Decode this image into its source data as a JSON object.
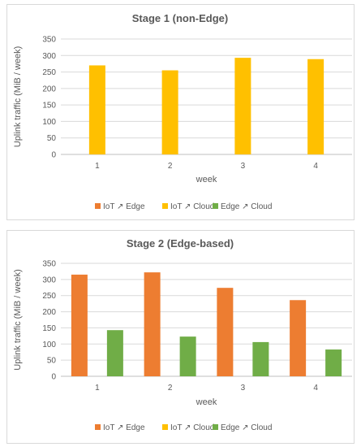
{
  "colors": {
    "iot_edge": "#ED7D31",
    "iot_cloud": "#FFC000",
    "edge_cloud": "#70AD47"
  },
  "chart_data": [
    {
      "type": "bar",
      "title": "Stage 1 (non-Edge)",
      "xlabel": "week",
      "ylabel": "Uplink traffic (MiB / week)",
      "ylim": [
        0,
        350
      ],
      "yticks": [
        0,
        50,
        100,
        150,
        200,
        250,
        300,
        350
      ],
      "categories": [
        "1",
        "2",
        "3",
        "4"
      ],
      "grid": true,
      "legend_position": "bottom",
      "legend": [
        "IoT ↗ Edge",
        "IoT ↗ Cloud",
        "Edge ↗ Cloud"
      ],
      "series": [
        {
          "name": "IoT ↗ Edge",
          "values": [
            0,
            0,
            0,
            0
          ]
        },
        {
          "name": "IoT ↗ Cloud",
          "values": [
            270,
            255,
            293,
            289
          ]
        },
        {
          "name": "Edge ↗ Cloud",
          "values": [
            0,
            0,
            0,
            0
          ]
        }
      ]
    },
    {
      "type": "bar",
      "title": "Stage 2 (Edge-based)",
      "xlabel": "week",
      "ylabel": "Uplink traffic (MiB / week)",
      "ylim": [
        0,
        350
      ],
      "yticks": [
        0,
        50,
        100,
        150,
        200,
        250,
        300,
        350
      ],
      "categories": [
        "1",
        "2",
        "3",
        "4"
      ],
      "grid": true,
      "legend_position": "bottom",
      "legend": [
        "IoT ↗ Edge",
        "IoT ↗ Cloud",
        "Edge ↗ Cloud"
      ],
      "series": [
        {
          "name": "IoT ↗ Edge",
          "values": [
            315,
            322,
            274,
            236
          ]
        },
        {
          "name": "IoT ↗ Cloud",
          "values": [
            0,
            0,
            0,
            0
          ]
        },
        {
          "name": "Edge ↗ Cloud",
          "values": [
            143,
            123,
            106,
            83
          ]
        }
      ]
    }
  ]
}
